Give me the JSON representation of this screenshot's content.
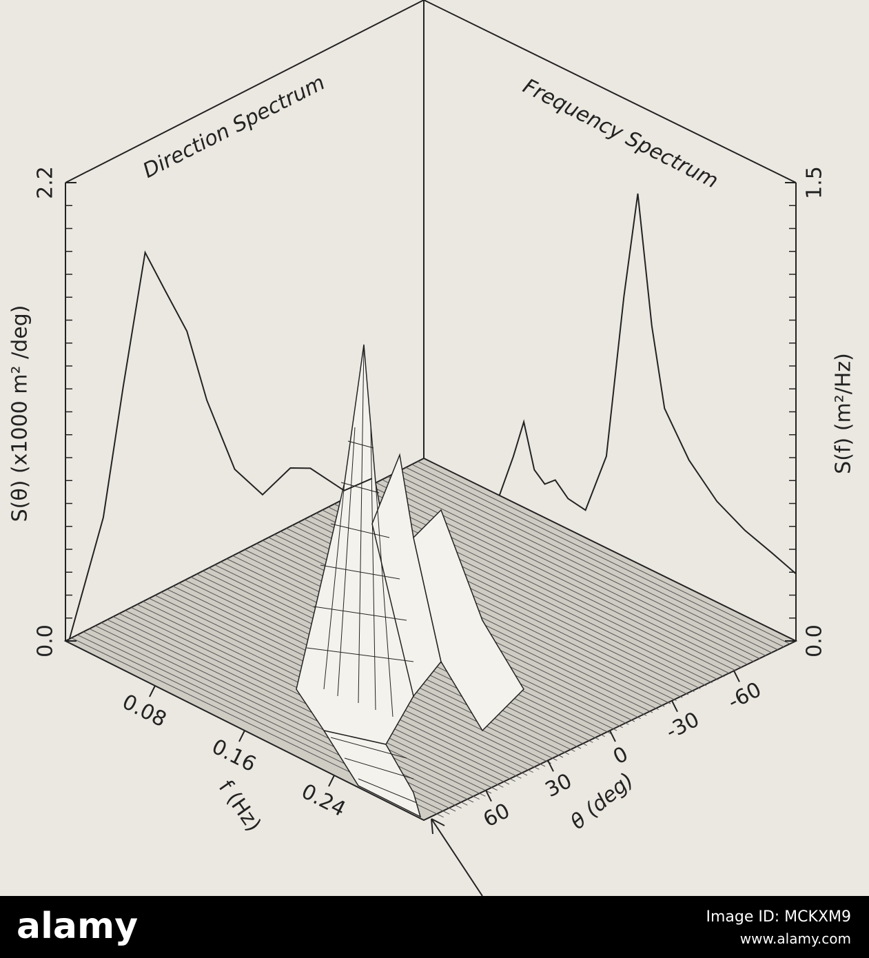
{
  "chart_data": [
    {
      "type": "line",
      "title": "Direction Spectrum",
      "ylabel": "S(θ) (x1000 m² /deg)",
      "x": [
        88,
        71,
        61,
        50,
        40,
        29,
        19,
        5,
        -9,
        -23,
        -33,
        -50,
        -64
      ],
      "values": [
        0,
        0.5,
        1.08,
        1.67,
        1.44,
        1.19,
        0.81,
        0.41,
        0.22,
        0.28,
        0.23,
        0.04,
        0.03
      ],
      "xlim": [
        90,
        -90
      ],
      "ylim": [
        0,
        2.2
      ],
      "yticks": [
        {
          "value": 0,
          "label": "0.0"
        },
        2.2
      ],
      "color": "#222222"
    },
    {
      "type": "line",
      "title": "Frequency Spectrum",
      "ylabel": "S(f) (m²/Hz)",
      "x": [
        0.065,
        0.077,
        0.086,
        0.095,
        0.104,
        0.113,
        0.124,
        0.139,
        0.157,
        0.172,
        0.184,
        0.196,
        0.207,
        0.228,
        0.252,
        0.276,
        0.299,
        0.32
      ],
      "values": [
        0,
        0.15,
        0.28,
        0.14,
        0.11,
        0.14,
        0.1,
        0.09,
        0.3,
        0.85,
        1.21,
        0.8,
        0.55,
        0.42,
        0.33,
        0.28,
        0.25,
        0.22
      ],
      "xlim": [
        0,
        0.32
      ],
      "ylim": [
        0,
        1.5
      ],
      "yticks": [
        {
          "value": 0,
          "label": "0.0"
        },
        1.5
      ],
      "color": "#222222"
    },
    {
      "type": "surface",
      "xlabel": "f (Hz)",
      "ylabel": "θ (deg)",
      "xlim": [
        0,
        0.32
      ],
      "xticks": [
        0.08,
        0.16,
        0.24
      ],
      "ylim": [
        90,
        -90
      ],
      "yticks": [
        60,
        30,
        0,
        -30,
        -60
      ]
    }
  ],
  "footer": {
    "logo": "alamy",
    "image_id": "Image ID: MCKXM9",
    "url": "www.alamy.com"
  }
}
